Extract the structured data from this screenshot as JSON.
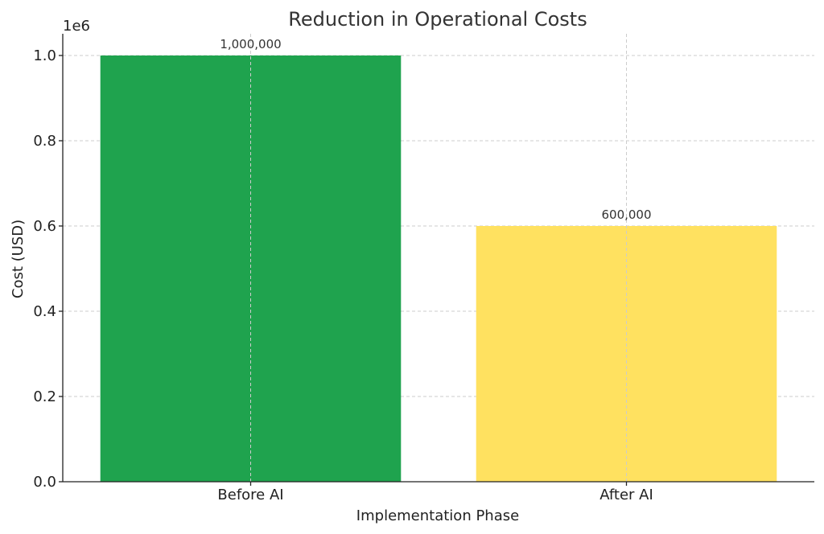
{
  "chart_data": {
    "type": "bar",
    "title": "Reduction in Operational Costs",
    "xlabel": "Implementation Phase",
    "ylabel": "Cost (USD)",
    "y_offset_label": "1e6",
    "categories": [
      "Before AI",
      "After AI"
    ],
    "values": [
      1000000,
      600000
    ],
    "value_labels": [
      "1,000,000",
      "600,000"
    ],
    "bar_colors": [
      "#1fa34e",
      "#ffe160"
    ],
    "ylim": [
      0,
      1000000
    ],
    "yticks": [
      0,
      200000,
      400000,
      600000,
      800000,
      1000000
    ],
    "ytick_labels": [
      "0.0",
      "0.2",
      "0.4",
      "0.6",
      "0.8",
      "1.0"
    ],
    "grid": true
  }
}
